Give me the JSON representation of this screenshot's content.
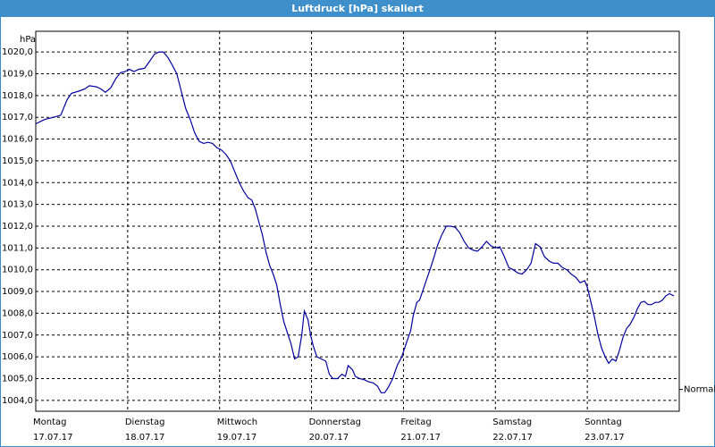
{
  "chart_data": {
    "type": "line",
    "title": "Luftdruck [hPa] skaliert",
    "y_unit": "hPa",
    "color": "#0000a0",
    "grid": true,
    "x": [
      0,
      0.097,
      0.194,
      0.272,
      0.34,
      0.388,
      0.466,
      0.534,
      0.583,
      0.66,
      0.709,
      0.757,
      0.816,
      0.874,
      0.922,
      0.971,
      1.019,
      1.068,
      1.117,
      1.184,
      1.243,
      1.291,
      1.34,
      1.388,
      1.437,
      1.485,
      1.534,
      1.583,
      1.631,
      1.68,
      1.728,
      1.777,
      1.825,
      1.874,
      1.922,
      1.971,
      2.019,
      2.068,
      2.117,
      2.165,
      2.214,
      2.262,
      2.311,
      2.35,
      2.388,
      2.427,
      2.466,
      2.505,
      2.544,
      2.583,
      2.621,
      2.66,
      2.699,
      2.738,
      2.777,
      2.816,
      2.854,
      2.893,
      2.922,
      2.961,
      2.99,
      3.019,
      3.058,
      3.107,
      3.155,
      3.194,
      3.233,
      3.282,
      3.33,
      3.369,
      3.398,
      3.447,
      3.476,
      3.524,
      3.573,
      3.621,
      3.67,
      3.718,
      3.757,
      3.796,
      3.835,
      3.883,
      3.932,
      3.981,
      4.029,
      4.078,
      4.107,
      4.146,
      4.175,
      4.223,
      4.272,
      4.32,
      4.369,
      4.417,
      4.466,
      4.515,
      4.563,
      4.612,
      4.66,
      4.709,
      4.757,
      4.806,
      4.854,
      4.903,
      4.951,
      5,
      5.049,
      5.097,
      5.146,
      5.194,
      5.243,
      5.291,
      5.34,
      5.388,
      5.437,
      5.485,
      5.534,
      5.583,
      5.631,
      5.68,
      5.728,
      5.777,
      5.825,
      5.874,
      5.922,
      5.971,
      6,
      6.039,
      6.078,
      6.117,
      6.155,
      6.194,
      6.233,
      6.272,
      6.311,
      6.35,
      6.388,
      6.427,
      6.466,
      6.505,
      6.544,
      6.583,
      6.621,
      6.66,
      6.699,
      6.738,
      6.777,
      6.816,
      6.854,
      6.893,
      6.942
    ],
    "values": [
      1016.7,
      1016.9,
      1017.0,
      1017.1,
      1017.8,
      1018.1,
      1018.2,
      1018.3,
      1018.45,
      1018.4,
      1018.3,
      1018.15,
      1018.35,
      1018.8,
      1019.05,
      1019.1,
      1019.2,
      1019.1,
      1019.2,
      1019.25,
      1019.6,
      1019.9,
      1020.0,
      1020.0,
      1019.75,
      1019.4,
      1019.0,
      1018.2,
      1017.4,
      1016.9,
      1016.3,
      1015.9,
      1015.8,
      1015.85,
      1015.8,
      1015.6,
      1015.5,
      1015.3,
      1015.0,
      1014.5,
      1014.0,
      1013.6,
      1013.3,
      1013.2,
      1012.8,
      1012.2,
      1011.6,
      1010.8,
      1010.2,
      1009.8,
      1009.3,
      1008.4,
      1007.6,
      1007.1,
      1006.6,
      1005.9,
      1006.0,
      1007.0,
      1008.1,
      1007.7,
      1007.0,
      1006.5,
      1006.0,
      1005.9,
      1005.8,
      1005.2,
      1005.0,
      1005.0,
      1005.2,
      1005.1,
      1005.6,
      1005.4,
      1005.1,
      1005.0,
      1004.95,
      1004.85,
      1004.8,
      1004.65,
      1004.35,
      1004.35,
      1004.6,
      1005.0,
      1005.6,
      1006.0,
      1006.6,
      1007.2,
      1007.9,
      1008.5,
      1008.6,
      1009.2,
      1009.8,
      1010.4,
      1011.1,
      1011.6,
      1012.0,
      1012.0,
      1011.95,
      1011.7,
      1011.3,
      1011.0,
      1010.9,
      1010.85,
      1011.05,
      1011.3,
      1011.1,
      1011.0,
      1011.05,
      1010.6,
      1010.1,
      1010.0,
      1009.85,
      1009.8,
      1010.0,
      1010.3,
      1011.2,
      1011.05,
      1010.6,
      1010.4,
      1010.3,
      1010.3,
      1010.1,
      1010.0,
      1009.8,
      1009.65,
      1009.4,
      1009.5,
      1009.2,
      1008.5,
      1007.8,
      1007.0,
      1006.4,
      1006.0,
      1005.7,
      1005.9,
      1005.8,
      1006.3,
      1006.9,
      1007.3,
      1007.5,
      1007.8,
      1008.2,
      1008.5,
      1008.55,
      1008.4,
      1008.4,
      1008.5,
      1008.5,
      1008.6,
      1008.8,
      1008.9,
      1008.8
    ],
    "xlim": [
      0,
      7
    ],
    "xticks": [
      {
        "value": 0,
        "label": "Montag"
      },
      {
        "value": 1,
        "label": "Dienstag"
      },
      {
        "value": 2,
        "label": "Mittwoch"
      },
      {
        "value": 3,
        "label": "Donnerstag"
      },
      {
        "value": 4,
        "label": "Freitag"
      },
      {
        "value": 5,
        "label": "Samstag"
      },
      {
        "value": 6,
        "label": "Sonntag"
      }
    ],
    "xtick_dates": [
      "17.07.17",
      "18.07.17",
      "19.07.17",
      "20.07.17",
      "21.07.17",
      "22.07.17",
      "23.07.17"
    ],
    "ylim": [
      1003.5,
      1020.95
    ],
    "yticks": [
      {
        "value": 1004,
        "label": "1004,0"
      },
      {
        "value": 1005,
        "label": "1005,0"
      },
      {
        "value": 1006,
        "label": "1006,0"
      },
      {
        "value": 1007,
        "label": "1007,0"
      },
      {
        "value": 1008,
        "label": "1008,0"
      },
      {
        "value": 1009,
        "label": "1009,0"
      },
      {
        "value": 1010,
        "label": "1010,0"
      },
      {
        "value": 1011,
        "label": "1011,0"
      },
      {
        "value": 1012,
        "label": "1012,0"
      },
      {
        "value": 1013,
        "label": "1013,0"
      },
      {
        "value": 1014,
        "label": "1014,0"
      },
      {
        "value": 1015,
        "label": "1015,0"
      },
      {
        "value": 1016,
        "label": "1016,0"
      },
      {
        "value": 1017,
        "label": "1017,0"
      },
      {
        "value": 1018,
        "label": "1018,0"
      },
      {
        "value": 1019,
        "label": "1019,0"
      },
      {
        "value": 1020,
        "label": "1020,0"
      }
    ],
    "reference": {
      "label": "Normal",
      "value": 1004.5
    }
  }
}
